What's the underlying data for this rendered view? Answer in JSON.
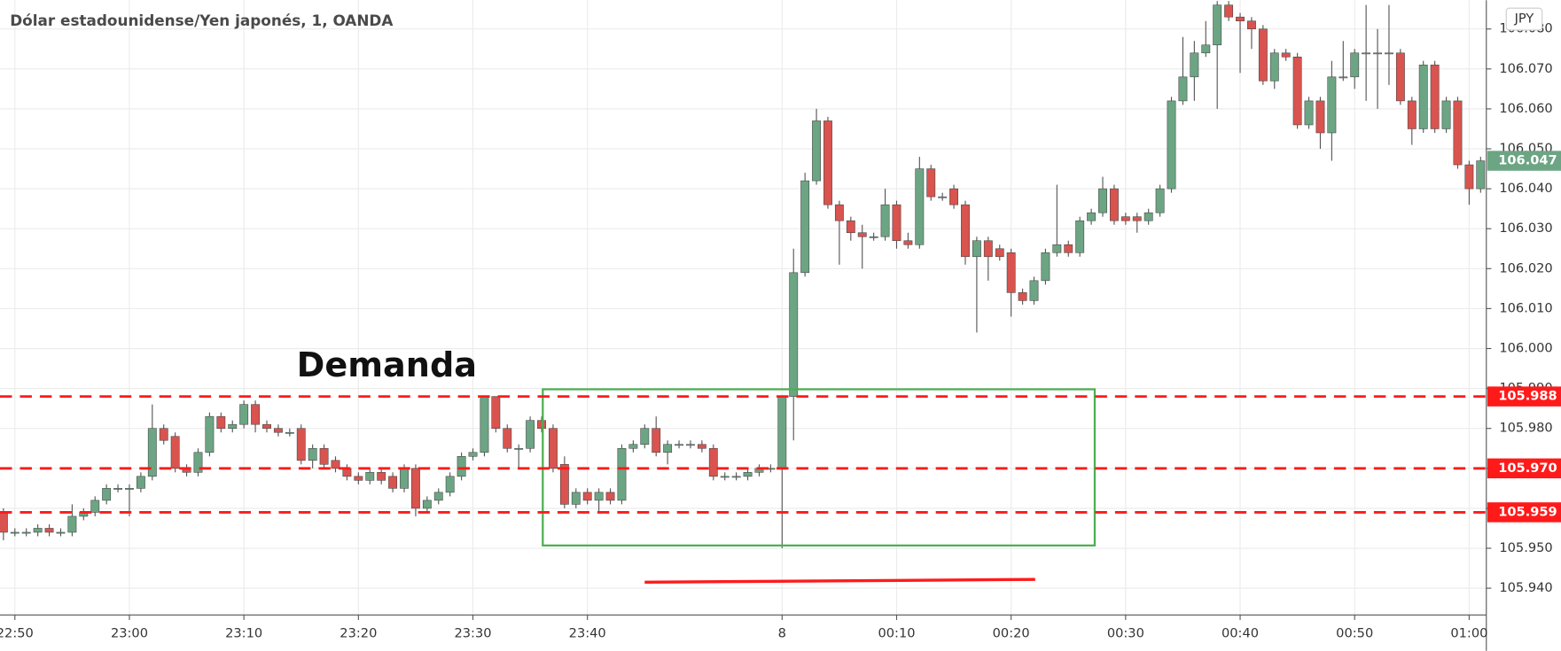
{
  "chart_data": {
    "type": "candlestick",
    "title": "Dólar estadounidense/Yen japonés, 1, OANDA",
    "currency": "JPY",
    "annotations": [
      "Demanda"
    ],
    "colors": {
      "up": "#6ca583",
      "down": "#d9534f",
      "wick": "#555555"
    },
    "grid": true,
    "xlim": [
      -0.3,
      129.5
    ],
    "ylim": [
      105.9333,
      106.0872
    ],
    "xticks": [
      {
        "value": 1,
        "label": "22:50"
      },
      {
        "value": 11,
        "label": "23:00"
      },
      {
        "value": 21,
        "label": "23:10"
      },
      {
        "value": 31,
        "label": "23:20"
      },
      {
        "value": 41,
        "label": "23:30"
      },
      {
        "value": 51,
        "label": "23:40"
      },
      {
        "value": 68,
        "label": "8"
      },
      {
        "value": 78,
        "label": "00:10"
      },
      {
        "value": 88,
        "label": "00:20"
      },
      {
        "value": 98,
        "label": "00:30"
      },
      {
        "value": 108,
        "label": "00:40"
      },
      {
        "value": 118,
        "label": "00:50"
      },
      {
        "value": 128,
        "label": "01:00"
      }
    ],
    "yticks": [
      {
        "value": 105.94,
        "label": "105.940"
      },
      {
        "value": 105.95,
        "label": "105.950"
      },
      {
        "value": 105.96,
        "label": "105.960"
      },
      {
        "value": 105.97,
        "label": "105.970"
      },
      {
        "value": 105.98,
        "label": "105.980"
      },
      {
        "value": 105.99,
        "label": "105.990"
      },
      {
        "value": 106.0,
        "label": "106.000"
      },
      {
        "value": 106.01,
        "label": "106.010"
      },
      {
        "value": 106.02,
        "label": "106.020"
      },
      {
        "value": 106.03,
        "label": "106.030"
      },
      {
        "value": 106.04,
        "label": "106.040"
      },
      {
        "value": 106.05,
        "label": "106.050"
      },
      {
        "value": 106.06,
        "label": "106.060"
      },
      {
        "value": 106.07,
        "label": "106.070"
      },
      {
        "value": 106.08,
        "label": "106.080"
      }
    ],
    "levels": [
      {
        "value": 105.988,
        "label": "105.988"
      },
      {
        "value": 105.97,
        "label": "105.970"
      },
      {
        "value": 105.959,
        "label": "105.959"
      }
    ],
    "level_color": "#ff1a1a",
    "last_price": {
      "value": 106.047,
      "label": "106.047",
      "color": "#6ca583"
    },
    "zone": {
      "x": [
        47.1,
        95.3
      ],
      "y": [
        105.9507,
        105.9898
      ],
      "color": "#4caf50"
    },
    "trend_line": {
      "x": [
        56,
        90.1
      ],
      "y": [
        105.9415,
        105.9422
      ],
      "color": "#ff1a1a"
    },
    "ohlc": [
      [
        105.959,
        105.96,
        105.952,
        105.954
      ],
      [
        105.954,
        105.955,
        105.953,
        105.954
      ],
      [
        105.954,
        105.955,
        105.953,
        105.954
      ],
      [
        105.954,
        105.956,
        105.953,
        105.955
      ],
      [
        105.955,
        105.956,
        105.953,
        105.954
      ],
      [
        105.954,
        105.955,
        105.953,
        105.954
      ],
      [
        105.954,
        105.961,
        105.953,
        105.958
      ],
      [
        105.958,
        105.96,
        105.957,
        105.959
      ],
      [
        105.959,
        105.963,
        105.958,
        105.962
      ],
      [
        105.962,
        105.966,
        105.961,
        105.965
      ],
      [
        105.965,
        105.966,
        105.964,
        105.965
      ],
      [
        105.965,
        105.966,
        105.958,
        105.965
      ],
      [
        105.965,
        105.969,
        105.964,
        105.968
      ],
      [
        105.968,
        105.986,
        105.967,
        105.98
      ],
      [
        105.98,
        105.981,
        105.976,
        105.977
      ],
      [
        105.978,
        105.979,
        105.969,
        105.97
      ],
      [
        105.97,
        105.971,
        105.968,
        105.969
      ],
      [
        105.969,
        105.975,
        105.968,
        105.974
      ],
      [
        105.974,
        105.984,
        105.973,
        105.983
      ],
      [
        105.983,
        105.984,
        105.979,
        105.98
      ],
      [
        105.98,
        105.982,
        105.979,
        105.981
      ],
      [
        105.981,
        105.987,
        105.98,
        105.986
      ],
      [
        105.986,
        105.987,
        105.979,
        105.981
      ],
      [
        105.981,
        105.982,
        105.979,
        105.98
      ],
      [
        105.98,
        105.981,
        105.978,
        105.979
      ],
      [
        105.979,
        105.98,
        105.978,
        105.979
      ],
      [
        105.98,
        105.981,
        105.971,
        105.972
      ],
      [
        105.972,
        105.976,
        105.97,
        105.975
      ],
      [
        105.975,
        105.976,
        105.97,
        105.971
      ],
      [
        105.972,
        105.973,
        105.969,
        105.97
      ],
      [
        105.97,
        105.971,
        105.967,
        105.968
      ],
      [
        105.968,
        105.969,
        105.966,
        105.967
      ],
      [
        105.967,
        105.97,
        105.966,
        105.969
      ],
      [
        105.969,
        105.97,
        105.966,
        105.967
      ],
      [
        105.968,
        105.969,
        105.964,
        105.965
      ],
      [
        105.965,
        105.971,
        105.964,
        105.97
      ],
      [
        105.97,
        105.971,
        105.958,
        105.96
      ],
      [
        105.96,
        105.963,
        105.959,
        105.962
      ],
      [
        105.962,
        105.965,
        105.961,
        105.964
      ],
      [
        105.964,
        105.969,
        105.963,
        105.968
      ],
      [
        105.968,
        105.974,
        105.967,
        105.973
      ],
      [
        105.973,
        105.975,
        105.972,
        105.974
      ],
      [
        105.974,
        105.988,
        105.973,
        105.988
      ],
      [
        105.988,
        105.988,
        105.979,
        105.98
      ],
      [
        105.98,
        105.981,
        105.974,
        105.975
      ],
      [
        105.975,
        105.976,
        105.97,
        105.975
      ],
      [
        105.975,
        105.983,
        105.974,
        105.982
      ],
      [
        105.982,
        105.983,
        105.979,
        105.98
      ],
      [
        105.98,
        105.981,
        105.969,
        105.97
      ],
      [
        105.971,
        105.973,
        105.96,
        105.961
      ],
      [
        105.961,
        105.965,
        105.96,
        105.964
      ],
      [
        105.964,
        105.965,
        105.961,
        105.962
      ],
      [
        105.962,
        105.965,
        105.959,
        105.964
      ],
      [
        105.964,
        105.965,
        105.961,
        105.962
      ],
      [
        105.962,
        105.976,
        105.961,
        105.975
      ],
      [
        105.975,
        105.977,
        105.974,
        105.976
      ],
      [
        105.976,
        105.981,
        105.975,
        105.98
      ],
      [
        105.98,
        105.983,
        105.973,
        105.974
      ],
      [
        105.974,
        105.977,
        105.971,
        105.976
      ],
      [
        105.976,
        105.977,
        105.975,
        105.976
      ],
      [
        105.976,
        105.977,
        105.975,
        105.976
      ],
      [
        105.976,
        105.977,
        105.974,
        105.975
      ],
      [
        105.975,
        105.976,
        105.967,
        105.968
      ],
      [
        105.968,
        105.969,
        105.967,
        105.968
      ],
      [
        105.968,
        105.969,
        105.967,
        105.968
      ],
      [
        105.968,
        105.97,
        105.967,
        105.969
      ],
      [
        105.969,
        105.971,
        105.968,
        105.97
      ],
      [
        105.97,
        105.971,
        105.969,
        105.97
      ],
      [
        105.97,
        105.988,
        105.95,
        105.988
      ],
      [
        105.988,
        106.025,
        105.977,
        106.019
      ],
      [
        106.019,
        106.044,
        106.018,
        106.042
      ],
      [
        106.042,
        106.06,
        106.041,
        106.057
      ],
      [
        106.057,
        106.058,
        106.035,
        106.036
      ],
      [
        106.036,
        106.037,
        106.021,
        106.032
      ],
      [
        106.032,
        106.033,
        106.027,
        106.029
      ],
      [
        106.029,
        106.031,
        106.02,
        106.028
      ],
      [
        106.028,
        106.029,
        106.027,
        106.028
      ],
      [
        106.028,
        106.04,
        106.027,
        106.036
      ],
      [
        106.036,
        106.037,
        106.025,
        106.027
      ],
      [
        106.027,
        106.029,
        106.025,
        106.026
      ],
      [
        106.026,
        106.048,
        106.025,
        106.045
      ],
      [
        106.045,
        106.046,
        106.037,
        106.038
      ],
      [
        106.038,
        106.039,
        106.037,
        106.038
      ],
      [
        106.04,
        106.041,
        106.035,
        106.036
      ],
      [
        106.036,
        106.037,
        106.021,
        106.023
      ],
      [
        106.023,
        106.028,
        106.004,
        106.027
      ],
      [
        106.027,
        106.028,
        106.017,
        106.023
      ],
      [
        106.025,
        106.026,
        106.022,
        106.023
      ],
      [
        106.024,
        106.025,
        106.008,
        106.014
      ],
      [
        106.014,
        106.015,
        106.011,
        106.012
      ],
      [
        106.012,
        106.018,
        106.011,
        106.017
      ],
      [
        106.017,
        106.025,
        106.016,
        106.024
      ],
      [
        106.024,
        106.041,
        106.023,
        106.026
      ],
      [
        106.026,
        106.027,
        106.023,
        106.024
      ],
      [
        106.024,
        106.033,
        106.023,
        106.032
      ],
      [
        106.032,
        106.035,
        106.031,
        106.034
      ],
      [
        106.034,
        106.043,
        106.033,
        106.04
      ],
      [
        106.04,
        106.041,
        106.031,
        106.032
      ],
      [
        106.033,
        106.034,
        106.031,
        106.032
      ],
      [
        106.033,
        106.034,
        106.029,
        106.032
      ],
      [
        106.032,
        106.035,
        106.031,
        106.034
      ],
      [
        106.034,
        106.041,
        106.033,
        106.04
      ],
      [
        106.04,
        106.063,
        106.039,
        106.062
      ],
      [
        106.062,
        106.078,
        106.061,
        106.068
      ],
      [
        106.068,
        106.077,
        106.062,
        106.074
      ],
      [
        106.074,
        106.082,
        106.073,
        106.076
      ],
      [
        106.076,
        106.087,
        106.06,
        106.086
      ],
      [
        106.086,
        106.087,
        106.082,
        106.083
      ],
      [
        106.083,
        106.084,
        106.069,
        106.082
      ],
      [
        106.082,
        106.083,
        106.075,
        106.08
      ],
      [
        106.08,
        106.081,
        106.066,
        106.067
      ],
      [
        106.067,
        106.075,
        106.065,
        106.074
      ],
      [
        106.074,
        106.075,
        106.072,
        106.073
      ],
      [
        106.073,
        106.074,
        106.055,
        106.056
      ],
      [
        106.056,
        106.063,
        106.055,
        106.062
      ],
      [
        106.062,
        106.063,
        106.05,
        106.054
      ],
      [
        106.054,
        106.072,
        106.047,
        106.068
      ],
      [
        106.068,
        106.077,
        106.067,
        106.068
      ],
      [
        106.068,
        106.075,
        106.065,
        106.074
      ],
      [
        106.074,
        106.086,
        106.062,
        106.074
      ],
      [
        106.074,
        106.08,
        106.06,
        106.074
      ],
      [
        106.074,
        106.086,
        106.066,
        106.074
      ],
      [
        106.074,
        106.075,
        106.061,
        106.062
      ],
      [
        106.062,
        106.063,
        106.051,
        106.055
      ],
      [
        106.055,
        106.072,
        106.054,
        106.071
      ],
      [
        106.071,
        106.072,
        106.054,
        106.055
      ],
      [
        106.055,
        106.063,
        106.054,
        106.062
      ],
      [
        106.062,
        106.063,
        106.045,
        106.046
      ],
      [
        106.046,
        106.047,
        106.036,
        106.04
      ],
      [
        106.04,
        106.048,
        106.039,
        106.047
      ]
    ]
  }
}
